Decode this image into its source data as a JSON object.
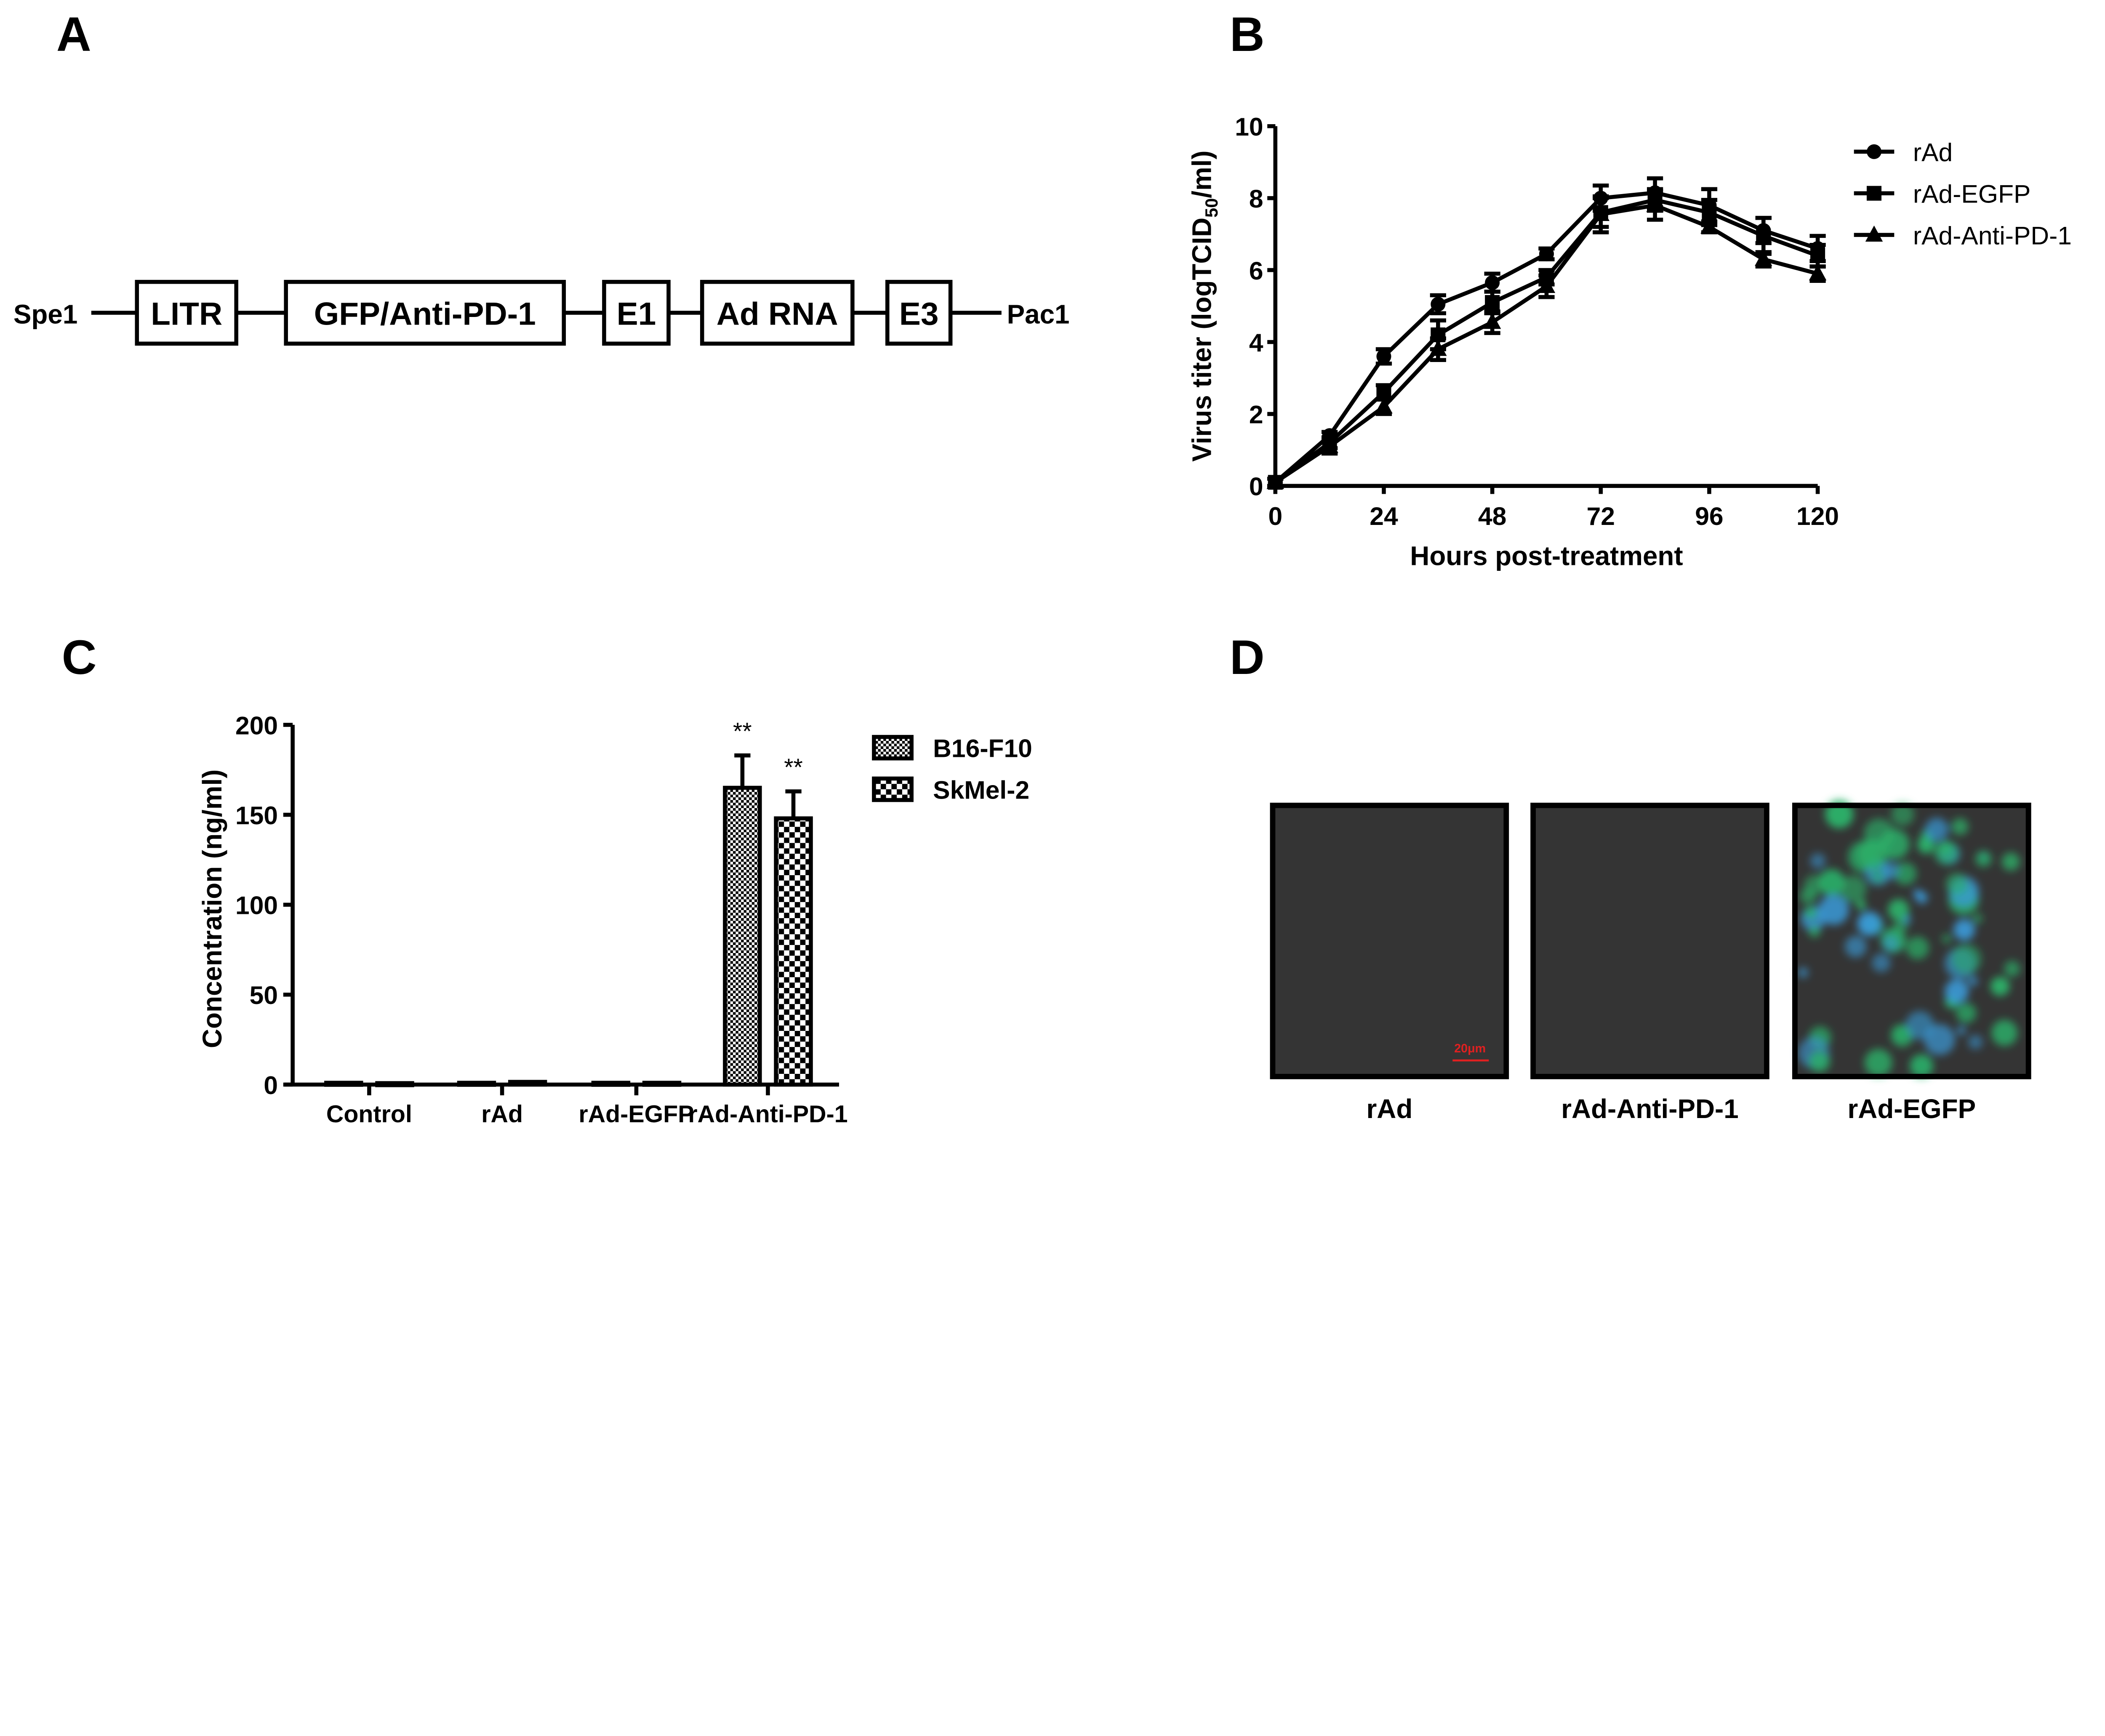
{
  "panels": {
    "a": "A",
    "b": "B",
    "c": "C",
    "d": "D"
  },
  "construct": {
    "left_end": "Spe1",
    "right_end": "Pac1",
    "elements": [
      "LITR",
      "GFP/Anti-PD-1",
      "E1",
      "Ad RNA",
      "E3"
    ]
  },
  "chart_data": [
    {
      "type": "line",
      "panel": "B",
      "xlabel": "Hours post-treatment",
      "ylabel_main": "Virus titer (logTCID",
      "ylabel_sub": "50",
      "ylabel_end": "/ml)",
      "xlim": [
        0,
        120
      ],
      "ylim": [
        0,
        10
      ],
      "xticks": [
        "0",
        "24",
        "48",
        "72",
        "96",
        "120"
      ],
      "yticks": [
        "0",
        "2",
        "4",
        "6",
        "8",
        "10"
      ],
      "x": [
        0,
        12,
        24,
        36,
        48,
        60,
        72,
        84,
        96,
        108,
        120
      ],
      "legend_position": "right",
      "series": [
        {
          "name": "rAd",
          "marker": "circle",
          "values": [
            0.1,
            1.4,
            3.6,
            5.05,
            5.65,
            6.45,
            8.0,
            8.15,
            7.8,
            7.1,
            6.6
          ],
          "errors": [
            0.1,
            0.1,
            0.2,
            0.25,
            0.25,
            0.15,
            0.35,
            0.4,
            0.45,
            0.35,
            0.35
          ]
        },
        {
          "name": "rAd-EGFP",
          "marker": "square",
          "values": [
            0.1,
            1.2,
            2.6,
            4.2,
            5.1,
            5.8,
            7.6,
            7.95,
            7.6,
            6.95,
            6.4
          ],
          "errors": [
            0.1,
            0.15,
            0.2,
            0.4,
            0.3,
            0.2,
            0.4,
            0.3,
            0.35,
            0.5,
            0.3
          ]
        },
        {
          "name": "rAd-Anti-PD-1",
          "marker": "triangle",
          "values": [
            0.1,
            1.1,
            2.2,
            3.8,
            4.55,
            5.55,
            7.55,
            7.8,
            7.2,
            6.3,
            5.9
          ],
          "errors": [
            0.1,
            0.2,
            0.2,
            0.3,
            0.3,
            0.3,
            0.5,
            0.4,
            0.15,
            0.2,
            0.2
          ]
        }
      ]
    },
    {
      "type": "bar",
      "panel": "C",
      "ylabel": "Concentration (ng/ml)",
      "ylim": [
        0,
        200
      ],
      "yticks": [
        "0",
        "50",
        "100",
        "150",
        "200"
      ],
      "categories": [
        "Control",
        "rAd",
        "rAd-EGFP",
        "rAd-Anti-PD-1"
      ],
      "legend_position": "top-right",
      "series": [
        {
          "name": "B16-F10",
          "pattern": "fine-check",
          "values": [
            1,
            1,
            1,
            165
          ],
          "errors": [
            0.5,
            0.5,
            0.5,
            18
          ],
          "annotations": [
            "",
            "",
            "",
            "**"
          ]
        },
        {
          "name": "SkMel-2",
          "pattern": "coarse-check",
          "values": [
            0.8,
            1.5,
            1,
            148
          ],
          "errors": [
            0.5,
            0.5,
            0.5,
            15
          ],
          "annotations": [
            "",
            "",
            "",
            "**"
          ]
        }
      ]
    }
  ],
  "microscopy": {
    "scale_bar": "20μm",
    "images": [
      {
        "label": "rAd",
        "fluorescent": false
      },
      {
        "label": "rAd-Anti-PD-1",
        "fluorescent": false
      },
      {
        "label": "rAd-EGFP",
        "fluorescent": true
      }
    ],
    "colors": {
      "background": "#343434",
      "gfp": "#2bb26a",
      "dapi": "#3a9ad8",
      "scale": "#e02020"
    }
  }
}
